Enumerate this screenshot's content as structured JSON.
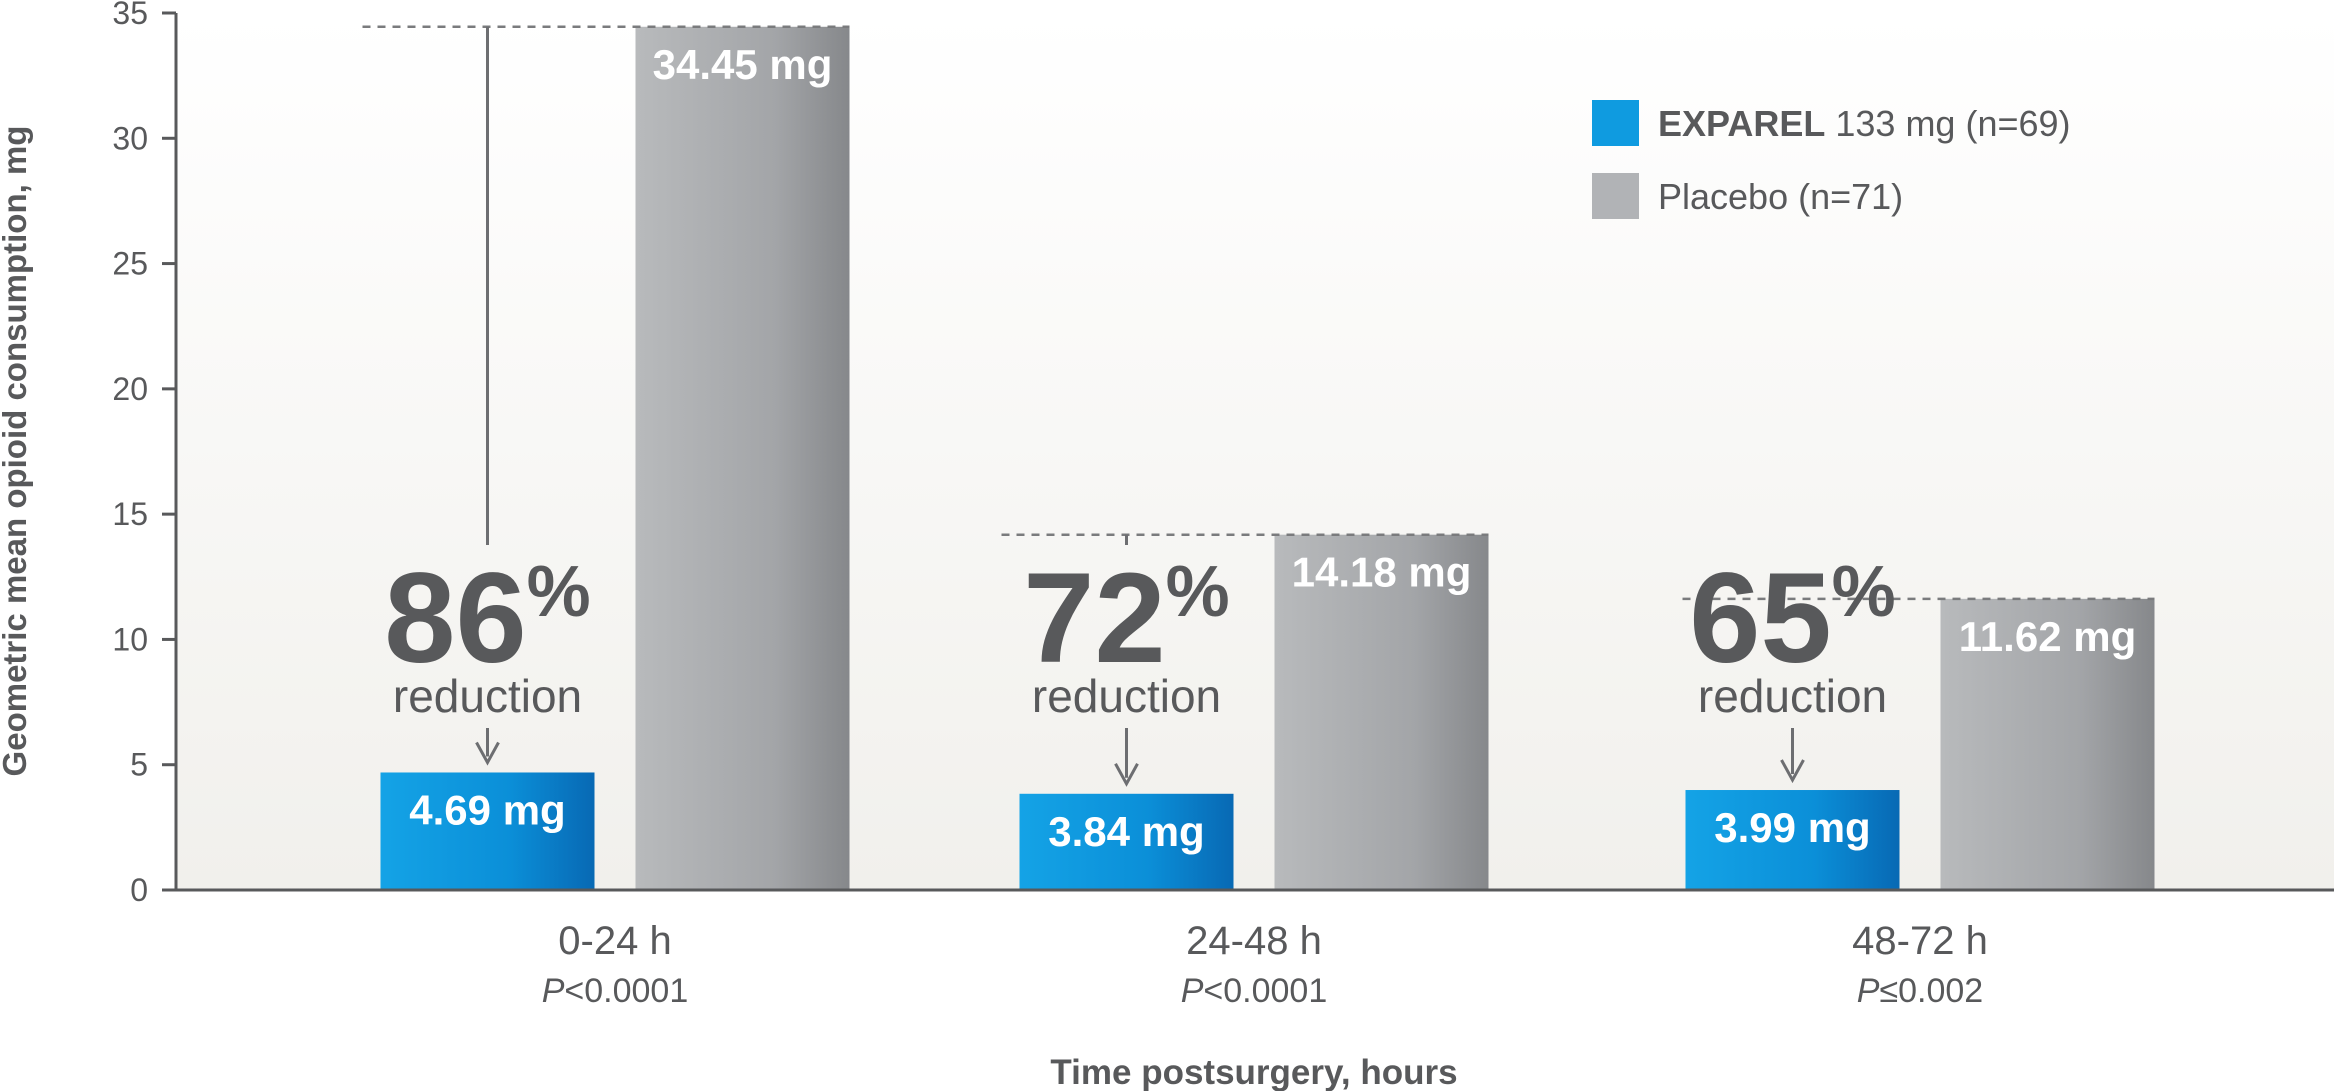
{
  "chart_data": {
    "type": "bar",
    "ylabel": "Geometric mean opioid consumption, mg",
    "xlabel": "Time postsurgery, hours",
    "ylim": [
      0,
      35
    ],
    "yticks": [
      0,
      5,
      10,
      15,
      20,
      25,
      30,
      35
    ],
    "grid": false,
    "legend_position": "top-right",
    "categories": [
      "0-24 h",
      "24-48 h",
      "48-72 h"
    ],
    "p_values": [
      {
        "italic": "P",
        "rest": "<0.0001"
      },
      {
        "italic": "P",
        "rest": "<0.0001"
      },
      {
        "italic": "P",
        "rest": "≤0.002"
      }
    ],
    "series": [
      {
        "name_bold": "EXPAREL",
        "name_rest": " 133 mg (n=69)",
        "color": "#0f8fd6",
        "values": [
          4.69,
          3.84,
          3.99
        ],
        "labels": [
          "4.69 mg",
          "3.84 mg",
          "3.99 mg"
        ]
      },
      {
        "name_bold": "",
        "name_rest": "Placebo (n=71)",
        "color": "#a7a9ac",
        "values": [
          34.45,
          14.18,
          11.62
        ],
        "labels": [
          "34.45 mg",
          "14.18 mg",
          "11.62 mg"
        ]
      }
    ],
    "annotations": [
      {
        "percent": "86",
        "symbol": "%",
        "text": "reduction"
      },
      {
        "percent": "72",
        "symbol": "%",
        "text": "reduction"
      },
      {
        "percent": "65",
        "symbol": "%",
        "text": "reduction"
      }
    ]
  }
}
